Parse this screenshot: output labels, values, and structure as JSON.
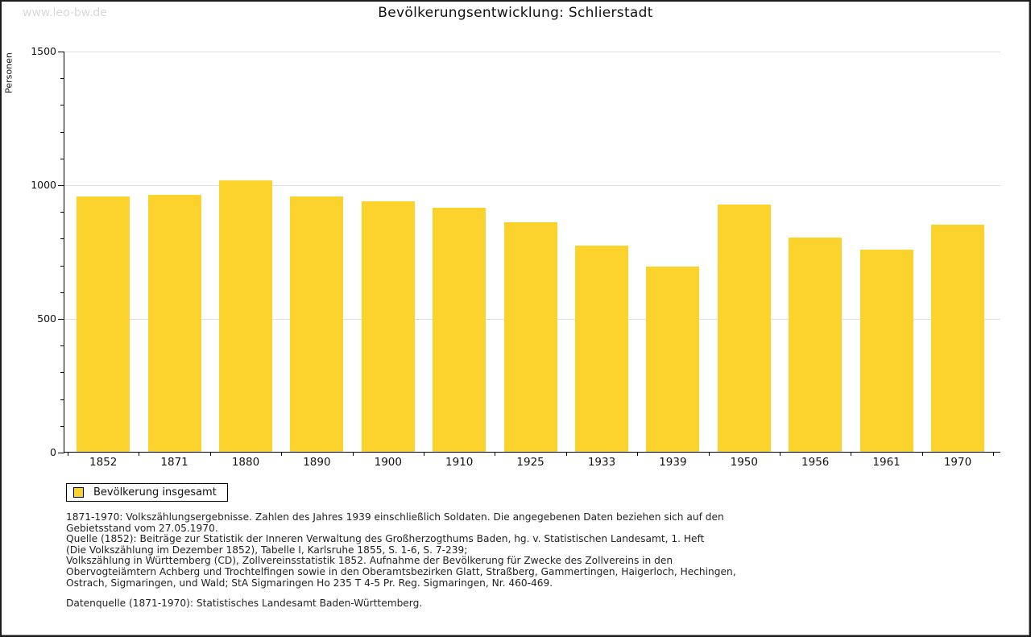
{
  "watermark": "www.leo-bw.de",
  "chart_data": {
    "type": "bar",
    "title": "Bevölkerungsentwicklung: Schlierstadt",
    "xlabel": "",
    "ylabel": "Personen",
    "ylim": [
      0,
      1500
    ],
    "yticks": [
      0,
      500,
      1000,
      1500
    ],
    "minor_tick_interval": 100,
    "grid": "horizontal",
    "categories": [
      "1852",
      "1871",
      "1880",
      "1890",
      "1900",
      "1910",
      "1925",
      "1933",
      "1939",
      "1950",
      "1956",
      "1961",
      "1970"
    ],
    "values": [
      956,
      962,
      1014,
      954,
      938,
      914,
      858,
      770,
      694,
      926,
      800,
      755,
      848
    ],
    "bar_color": "#fcd32d",
    "grid_color": "#dedede",
    "legend": [
      {
        "label": "Bevölkerung insgesamt",
        "color": "#fcd32d"
      }
    ],
    "legend_position": "bottom-left"
  },
  "footnotes": {
    "lines": [
      "1871-1970: Volkszählungsergebnisse. Zahlen des Jahres 1939 einschließlich Soldaten. Die angegebenen Daten beziehen sich auf den",
      "Gebietsstand vom 27.05.1970.",
      "Quelle (1852): Beiträge zur Statistik der Inneren Verwaltung des Großherzogthums Baden, hg. v. Statistischen Landesamt, 1. Heft",
      "(Die Volkszählung im Dezember 1852), Tabelle I, Karlsruhe 1855, S. 1-6, S. 7-239;",
      "Volkszählung in Württemberg (CD), Zollvereinsstatistik 1852. Aufnahme der Bevölkerung für Zwecke des Zollvereins in den",
      "Obervogteiämtern Achberg und Trochtelfingen sowie in den Oberamtsbezirken Glatt, Straßberg, Gammertingen, Haigerloch, Hechingen,",
      "Ostrach, Sigmaringen, und Wald; StA Sigmaringen Ho 235 T 4-5 Pr. Reg. Sigmaringen, Nr. 460-469."
    ],
    "datasource": "Datenquelle (1871-1970): Statistisches Landesamt Baden-Württemberg."
  }
}
